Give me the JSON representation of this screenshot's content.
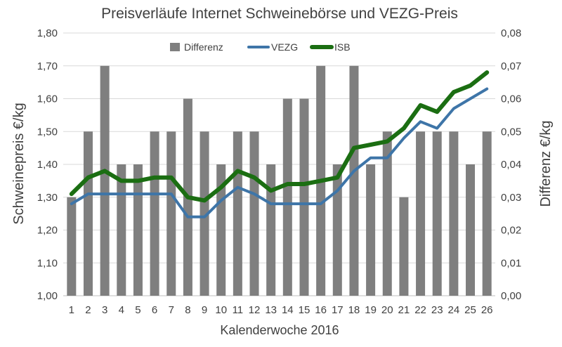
{
  "chart_data": {
    "type": "bar",
    "title": "Preisverläufe Internet Schweinebörse und VEZG-Preis",
    "xlabel": "Kalenderwoche 2016",
    "ylabel": "Schweinepreis €/kg",
    "y2label": "Differenz €/kg",
    "categories": [
      "1",
      "2",
      "3",
      "4",
      "5",
      "6",
      "7",
      "8",
      "9",
      "10",
      "11",
      "12",
      "13",
      "14",
      "15",
      "16",
      "17",
      "18",
      "19",
      "20",
      "21",
      "22",
      "23",
      "24",
      "25",
      "26"
    ],
    "ylim": [
      1.0,
      1.8
    ],
    "y2lim": [
      0.0,
      0.08
    ],
    "yticks": [
      "1,00",
      "1,10",
      "1,20",
      "1,30",
      "1,40",
      "1,50",
      "1,60",
      "1,70",
      "1,80"
    ],
    "y2ticks": [
      "0,00",
      "0,01",
      "0,02",
      "0,03",
      "0,04",
      "0,05",
      "0,06",
      "0,07",
      "0,08"
    ],
    "legend_position": "top",
    "grid": "horizontal",
    "series": [
      {
        "name": "Differenz",
        "type": "bar",
        "axis": "right",
        "color": "#7f7f7f",
        "values": [
          0.03,
          0.05,
          0.07,
          0.04,
          0.04,
          0.05,
          0.05,
          0.06,
          0.05,
          0.04,
          0.05,
          0.05,
          0.04,
          0.06,
          0.06,
          0.07,
          0.04,
          0.07,
          0.04,
          0.05,
          0.03,
          0.05,
          0.05,
          0.05,
          0.04,
          0.05
        ]
      },
      {
        "name": "VEZG",
        "type": "line",
        "axis": "left",
        "color": "#3e75a8",
        "values": [
          1.28,
          1.31,
          1.31,
          1.31,
          1.31,
          1.31,
          1.31,
          1.24,
          1.24,
          1.29,
          1.33,
          1.31,
          1.28,
          1.28,
          1.28,
          1.28,
          1.32,
          1.38,
          1.42,
          1.42,
          1.48,
          1.53,
          1.51,
          1.57,
          1.6,
          1.63
        ]
      },
      {
        "name": "ISB",
        "type": "line",
        "axis": "left",
        "color": "#1b6e12",
        "values": [
          1.31,
          1.36,
          1.38,
          1.35,
          1.35,
          1.36,
          1.36,
          1.3,
          1.29,
          1.33,
          1.38,
          1.36,
          1.32,
          1.34,
          1.34,
          1.35,
          1.36,
          1.45,
          1.46,
          1.47,
          1.51,
          1.58,
          1.56,
          1.62,
          1.64,
          1.68
        ]
      }
    ]
  }
}
